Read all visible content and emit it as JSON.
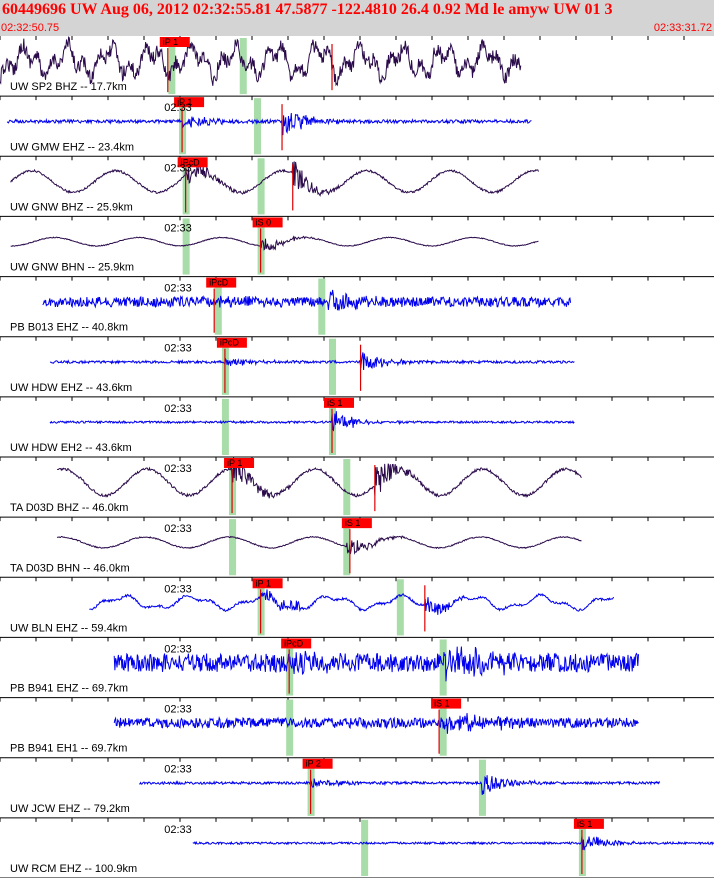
{
  "header": {
    "title": "60449696 UW Aug 06, 2012 02:32:55.81    47.5877 -122.4810 26.4 0.92 Md le amyw UW 01   3",
    "start_time": "02:32:50.75",
    "end_time": "02:33:31.72"
  },
  "colors": {
    "header_bg": "#d4d4d4",
    "header_text": "#ff0000",
    "trace_blue": "#0000ee",
    "trace_purple": "#2a0a4a",
    "pick_box": "#ff0000",
    "pick_line": "#dd0000",
    "green_marker": "#a8dca8"
  },
  "chart_data": {
    "type": "line",
    "time_range": [
      "02:32:50.75",
      "02:33:31.72"
    ],
    "minute_label": "02:33",
    "traces": [
      {
        "label": "UW SP2 BHZ -- 17.7km",
        "color": "purple",
        "style": "noise",
        "start_frac": 0.0,
        "end_frac": 0.73,
        "amp": 0.35,
        "pick_label": "iP 1",
        "pick_frac": 0.235,
        "s_pick_frac": 0.465,
        "green_fracs": [
          0.24,
          0.34
        ],
        "minute_frac": null
      },
      {
        "label": "UW GMW EHZ -- 23.4km",
        "color": "blue",
        "style": "quake",
        "start_frac": 0.01,
        "end_frac": 0.745,
        "amp": 0.08,
        "pick_label": "iP 1",
        "pick_frac": 0.255,
        "s_pick_frac": 0.395,
        "green_fracs": [
          0.255,
          0.36
        ],
        "minute_frac": 0.23
      },
      {
        "label": "UW GNW BHZ -- 25.9km",
        "color": "purple",
        "style": "wave",
        "start_frac": 0.015,
        "end_frac": 0.755,
        "amp": 0.18,
        "pick_label": "iPcD",
        "pick_frac": 0.26,
        "s_pick_frac": 0.41,
        "green_fracs": [
          0.26,
          0.365
        ],
        "minute_frac": 0.23
      },
      {
        "label": "UW GNW BHN -- 25.9km",
        "color": "purple",
        "style": "wave",
        "start_frac": 0.015,
        "end_frac": 0.755,
        "amp": 0.07,
        "pick_label": "iS 0",
        "pick_frac": 0.365,
        "s_pick_frac": null,
        "green_fracs": [
          0.26,
          0.365
        ],
        "minute_frac": 0.23
      },
      {
        "label": "PB B013 EHZ -- 40.8km",
        "color": "blue",
        "style": "noise_quake",
        "start_frac": 0.06,
        "end_frac": 0.8,
        "amp": 0.12,
        "pick_label": "iPcD",
        "pick_frac": 0.3,
        "s_pick_frac": null,
        "green_fracs": [
          0.305,
          0.45
        ],
        "minute_frac": 0.23
      },
      {
        "label": "UW HDW EHZ -- 43.6km",
        "color": "blue",
        "style": "quake",
        "start_frac": 0.07,
        "end_frac": 0.805,
        "amp": 0.06,
        "pick_label": "iPcD",
        "pick_frac": 0.315,
        "s_pick_frac": 0.505,
        "green_fracs": [
          0.315,
          0.465
        ],
        "minute_frac": 0.23
      },
      {
        "label": "UW HDW EH2 -- 43.6km",
        "color": "blue",
        "style": "quake",
        "start_frac": 0.07,
        "end_frac": 0.805,
        "amp": 0.05,
        "pick_label": "iS 1",
        "pick_frac": 0.465,
        "s_pick_frac": null,
        "green_fracs": [
          0.315,
          0.465
        ],
        "minute_frac": 0.23
      },
      {
        "label": "TA D03D BHZ -- 46.0km",
        "color": "purple",
        "style": "wave",
        "start_frac": 0.08,
        "end_frac": 0.815,
        "amp": 0.22,
        "pick_label": "iP 1",
        "pick_frac": 0.325,
        "s_pick_frac": 0.525,
        "green_fracs": [
          0.325,
          0.485
        ],
        "minute_frac": 0.23
      },
      {
        "label": "TA D03D BHN -- 46.0km",
        "color": "purple",
        "style": "wave",
        "start_frac": 0.08,
        "end_frac": 0.815,
        "amp": 0.09,
        "pick_label": "iS 1",
        "pick_frac": 0.49,
        "s_pick_frac": null,
        "green_fracs": [
          0.325,
          0.485
        ],
        "minute_frac": 0.23
      },
      {
        "label": "UW BLN EHZ -- 59.4km",
        "color": "blue",
        "style": "wave_quake",
        "start_frac": 0.125,
        "end_frac": 0.86,
        "amp": 0.13,
        "pick_label": "iP 1",
        "pick_frac": 0.365,
        "s_pick_frac": 0.595,
        "green_fracs": [
          0.365,
          0.56
        ],
        "minute_frac": 0.23
      },
      {
        "label": "PB B941 EHZ -- 69.7km",
        "color": "blue",
        "style": "noise_quake",
        "start_frac": 0.16,
        "end_frac": 0.895,
        "amp": 0.22,
        "pick_label": "iPcD",
        "pick_frac": 0.405,
        "s_pick_frac": null,
        "green_fracs": [
          0.405,
          0.62
        ],
        "minute_frac": 0.23
      },
      {
        "label": "PB B941 EH1 -- 69.7km",
        "color": "blue",
        "style": "noise_quake",
        "start_frac": 0.16,
        "end_frac": 0.895,
        "amp": 0.12,
        "pick_label": "iS 1",
        "pick_frac": 0.615,
        "s_pick_frac": null,
        "green_fracs": [
          0.405,
          0.62
        ],
        "minute_frac": 0.23
      },
      {
        "label": "UW JCW EHZ -- 79.2km",
        "color": "blue",
        "style": "quake",
        "start_frac": 0.195,
        "end_frac": 0.925,
        "amp": 0.06,
        "pick_label": "iP 2",
        "pick_frac": 0.435,
        "s_pick_frac": null,
        "green_fracs": [
          0.435,
          0.675
        ],
        "minute_frac": 0.23
      },
      {
        "label": "UW RCM EHZ -- 100.9km",
        "color": "blue",
        "style": "quake",
        "start_frac": 0.27,
        "end_frac": 1.0,
        "amp": 0.05,
        "pick_label": "iS 1",
        "pick_frac": 0.815,
        "s_pick_frac": null,
        "green_fracs": [
          0.51,
          0.815
        ],
        "minute_frac": 0.23
      }
    ]
  }
}
